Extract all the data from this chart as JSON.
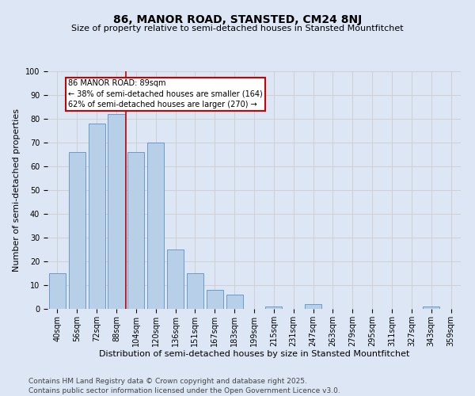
{
  "title": "86, MANOR ROAD, STANSTED, CM24 8NJ",
  "subtitle": "Size of property relative to semi-detached houses in Stansted Mountfitchet",
  "xlabel": "Distribution of semi-detached houses by size in Stansted Mountfitchet",
  "ylabel": "Number of semi-detached properties",
  "categories": [
    "40sqm",
    "56sqm",
    "72sqm",
    "88sqm",
    "104sqm",
    "120sqm",
    "136sqm",
    "151sqm",
    "167sqm",
    "183sqm",
    "199sqm",
    "215sqm",
    "231sqm",
    "247sqm",
    "263sqm",
    "279sqm",
    "295sqm",
    "311sqm",
    "327sqm",
    "343sqm",
    "359sqm"
  ],
  "values": [
    15,
    66,
    78,
    82,
    66,
    70,
    25,
    15,
    8,
    6,
    0,
    1,
    0,
    2,
    0,
    0,
    0,
    0,
    0,
    1,
    0
  ],
  "bar_color": "#b8cfe8",
  "bar_edge_color": "#5b8fc9",
  "vline_color": "#cc0000",
  "annotation_text": "86 MANOR ROAD: 89sqm\n← 38% of semi-detached houses are smaller (164)\n62% of semi-detached houses are larger (270) →",
  "annotation_box_color": "#ffffff",
  "annotation_box_edge_color": "#cc0000",
  "ylim": [
    0,
    100
  ],
  "yticks": [
    0,
    10,
    20,
    30,
    40,
    50,
    60,
    70,
    80,
    90,
    100
  ],
  "grid_color": "#cccccc",
  "background_color": "#dce6f5",
  "footer": "Contains HM Land Registry data © Crown copyright and database right 2025.\nContains public sector information licensed under the Open Government Licence v3.0.",
  "title_fontsize": 10,
  "subtitle_fontsize": 8,
  "xlabel_fontsize": 8,
  "ylabel_fontsize": 8,
  "tick_fontsize": 7,
  "footer_fontsize": 6.5,
  "annot_fontsize": 7
}
